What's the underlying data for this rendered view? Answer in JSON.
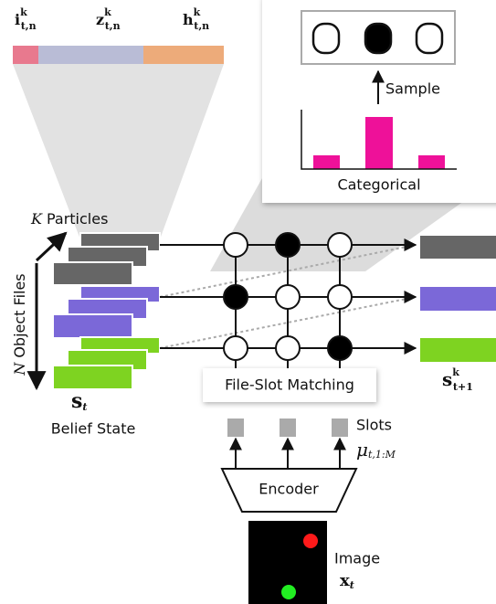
{
  "top_vector": {
    "i": {
      "base": "i",
      "sup": "k",
      "sub": "t,n"
    },
    "z": {
      "base": "z",
      "sup": "k",
      "sub": "t,n"
    },
    "h": {
      "base": "h",
      "sup": "k",
      "sub": "t,n"
    }
  },
  "sampling_panel": {
    "sample_label": "Sample",
    "distribution_label": "Categorical"
  },
  "particles_label": {
    "var": "K",
    "text": "Particles"
  },
  "object_files_label": {
    "var": "N",
    "text": "Object Files"
  },
  "belief_state": {
    "symbol": {
      "base": "s",
      "sub": "t"
    },
    "label": "Belief State"
  },
  "matching_label": "File-Slot Matching",
  "output": {
    "base": "s",
    "sup": "k",
    "sub": "t+1"
  },
  "slots": {
    "label": "Slots",
    "symbol": {
      "base": "μ",
      "sub": "t,1:M"
    }
  },
  "encoder_label": "Encoder",
  "image": {
    "label": "Image",
    "symbol": {
      "base": "x",
      "sub": "t"
    }
  }
}
